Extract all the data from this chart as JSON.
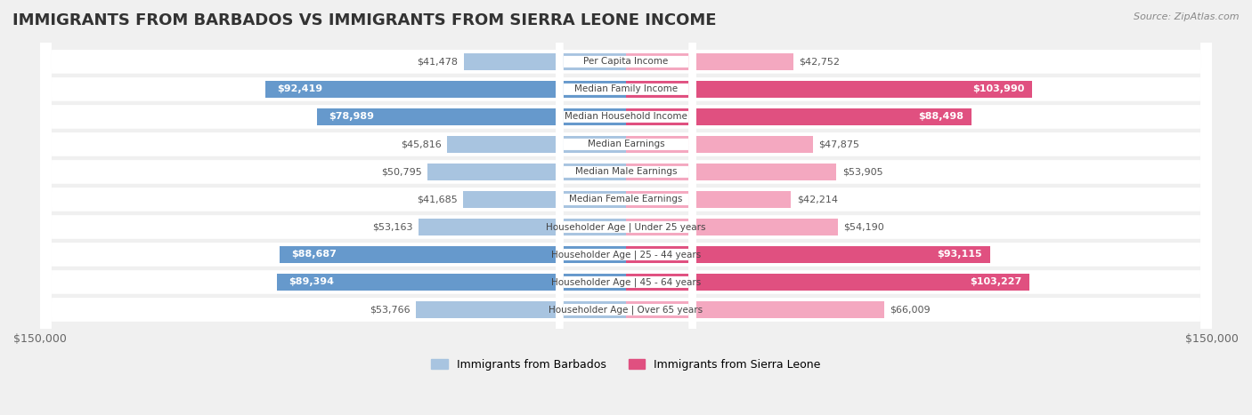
{
  "title": "IMMIGRANTS FROM BARBADOS VS IMMIGRANTS FROM SIERRA LEONE INCOME",
  "source": "Source: ZipAtlas.com",
  "categories": [
    "Per Capita Income",
    "Median Family Income",
    "Median Household Income",
    "Median Earnings",
    "Median Male Earnings",
    "Median Female Earnings",
    "Householder Age | Under 25 years",
    "Householder Age | 25 - 44 years",
    "Householder Age | 45 - 64 years",
    "Householder Age | Over 65 years"
  ],
  "barbados_values": [
    41478,
    92419,
    78989,
    45816,
    50795,
    41685,
    53163,
    88687,
    89394,
    53766
  ],
  "sierraleone_values": [
    42752,
    103990,
    88498,
    47875,
    53905,
    42214,
    54190,
    93115,
    103227,
    66009
  ],
  "barbados_labels": [
    "$41,478",
    "$92,419",
    "$78,989",
    "$45,816",
    "$50,795",
    "$41,685",
    "$53,163",
    "$88,687",
    "$89,394",
    "$53,766"
  ],
  "sierraleone_labels": [
    "$42,752",
    "$103,990",
    "$88,498",
    "$47,875",
    "$53,905",
    "$42,214",
    "$54,190",
    "$93,115",
    "$103,227",
    "$66,009"
  ],
  "barbados_color_light": "#a8c4e0",
  "barbados_color_dark": "#6699cc",
  "sierraleone_color_light": "#f4a8c0",
  "sierraleone_color_dark": "#e05080",
  "max_value": 150000,
  "legend_barbados": "Immigrants from Barbados",
  "legend_sierraleone": "Immigrants from Sierra Leone",
  "bg_color": "#f0f0f0",
  "row_bg": "#ffffff",
  "barbados_text_threshold": 80000,
  "sierraleone_text_threshold": 80000
}
